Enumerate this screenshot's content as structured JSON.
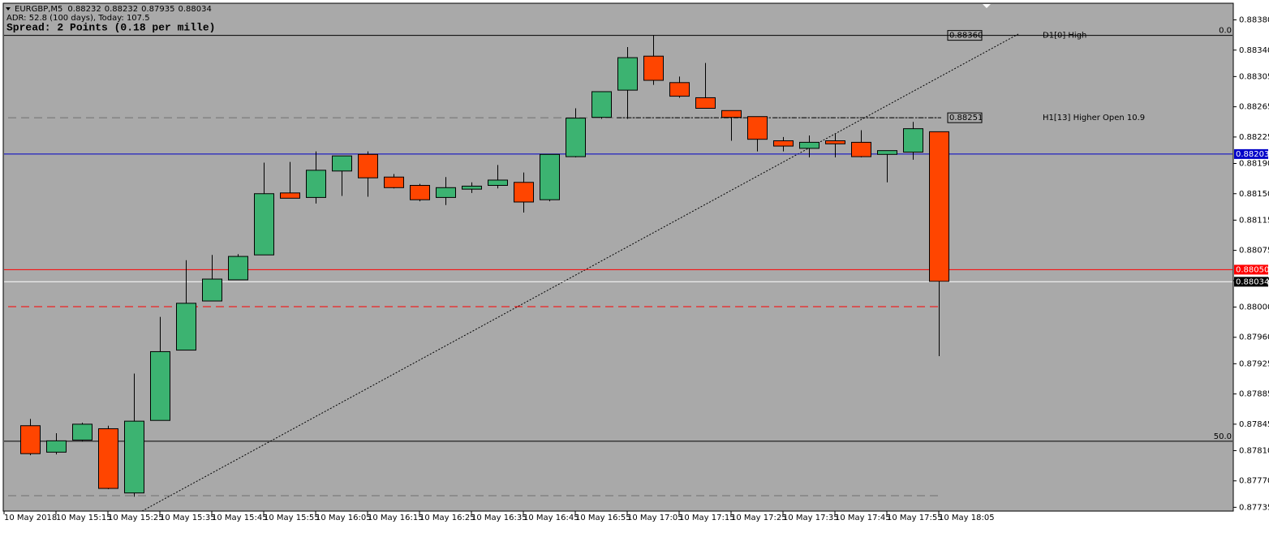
{
  "chart_data": {
    "type": "candlestick",
    "symbol": "EURGBP,M5",
    "adr_text": "ADR: 52.8 (100 days), Today: 107.5",
    "spread_text": "Spread: 2 Points (0.18 per mille)",
    "categories": [
      "10 May 2018",
      null,
      "10 May 15:15",
      null,
      "10 May 15:25",
      null,
      "10 May 15:35",
      null,
      "10 May 15:45",
      null,
      "10 May 15:55",
      null,
      "10 May 16:05",
      null,
      "10 May 16:15",
      null,
      "10 May 16:25",
      null,
      "10 May 16:35",
      null,
      "10 May 16:45",
      null,
      "10 May 16:55",
      null,
      "10 May 17:05",
      null,
      "10 May 17:15",
      null,
      "10 May 17:25",
      null,
      "10 May 17:35",
      null,
      "10 May 17:45",
      null,
      "10 May 17:55",
      null,
      "10 May 18:05"
    ],
    "open": [
      null,
      0.87843,
      0.87808,
      0.87824,
      0.87839,
      0.87754,
      0.8785,
      0.87943,
      0.88008,
      0.88036,
      0.88069,
      0.88151,
      0.88145,
      0.8818,
      0.88202,
      0.88172,
      0.88161,
      0.88145,
      0.88156,
      0.88161,
      0.88165,
      0.88142,
      0.88199,
      0.88251,
      0.88287,
      0.88332,
      0.88297,
      0.88277,
      0.8826,
      0.88252,
      0.8822,
      0.8821,
      0.8822,
      0.88218,
      0.88202,
      0.88205,
      0.88232
    ],
    "high": [
      null,
      0.87852,
      0.87833,
      0.87847,
      0.87843,
      0.87912,
      0.87987,
      0.88062,
      0.88069,
      0.8807,
      0.88191,
      0.88192,
      0.88206,
      0.882,
      0.88206,
      0.88176,
      0.88163,
      0.88172,
      0.88165,
      0.88188,
      0.88178,
      0.88202,
      0.88263,
      0.88285,
      0.88344,
      0.8836,
      0.88305,
      0.88323,
      0.8826,
      0.88252,
      0.88225,
      0.88227,
      0.88229,
      0.88234,
      0.88207,
      0.88245,
      0.88232
    ],
    "low": [
      null,
      0.87804,
      0.87805,
      0.87822,
      0.87759,
      0.87749,
      0.8785,
      0.87943,
      0.88008,
      0.88036,
      0.88069,
      0.88144,
      0.88137,
      0.88147,
      0.88146,
      0.88157,
      0.8814,
      0.88135,
      0.88151,
      0.88157,
      0.88125,
      0.8814,
      0.88198,
      0.88249,
      0.88249,
      0.88294,
      0.88277,
      0.88263,
      0.8822,
      0.88206,
      0.88206,
      0.88198,
      0.88198,
      0.88198,
      0.88165,
      0.88195,
      0.87935
    ],
    "close": [
      null,
      0.87806,
      0.87823,
      0.87845,
      0.8776,
      0.87849,
      0.87941,
      0.88005,
      0.88037,
      0.88067,
      0.8815,
      0.88144,
      0.88181,
      0.882,
      0.88171,
      0.88158,
      0.88142,
      0.88158,
      0.8816,
      0.88168,
      0.88139,
      0.88202,
      0.8825,
      0.88285,
      0.8833,
      0.883,
      0.88279,
      0.88263,
      0.88251,
      0.88222,
      0.88213,
      0.88218,
      0.88216,
      0.88199,
      0.88207,
      0.88236,
      0.88034
    ],
    "up_color": "#3cb371",
    "down_color": "#ff4500",
    "ylim": [
      0.8773,
      0.88402
    ],
    "yticks": [
      {
        "value": 0.8838,
        "label": "0.88380"
      },
      {
        "value": 0.8834,
        "label": "0.88340"
      },
      {
        "value": 0.88305,
        "label": "0.88305"
      },
      {
        "value": 0.88265,
        "label": "0.88265"
      },
      {
        "value": 0.88225,
        "label": "0.88225"
      },
      {
        "value": 0.8819,
        "label": "0.88190"
      },
      {
        "value": 0.8815,
        "label": "0.88150"
      },
      {
        "value": 0.88115,
        "label": "0.88115"
      },
      {
        "value": 0.88075,
        "label": "0.88075"
      },
      {
        "value": 0.88035,
        "label": "0.88035"
      },
      {
        "value": 0.88,
        "label": "0.88000"
      },
      {
        "value": 0.8796,
        "label": "0.87960"
      },
      {
        "value": 0.87925,
        "label": "0.87925"
      },
      {
        "value": 0.87885,
        "label": "0.87885"
      },
      {
        "value": 0.87845,
        "label": "0.87845"
      },
      {
        "value": 0.8781,
        "label": "0.87810"
      },
      {
        "value": 0.8777,
        "label": "0.87770"
      },
      {
        "value": 0.87735,
        "label": "0.87735"
      }
    ],
    "levels": [
      {
        "value": 0.8836,
        "label": "0.88360",
        "label_place": "box",
        "text": "D1[0] High",
        "fib_label": "0.0",
        "style": "solid",
        "color": "#000000"
      },
      {
        "value": 0.88251,
        "label": "0.88251",
        "label_place": "box",
        "text": "H1[13] Higher Open 10.9",
        "style": "dashed",
        "color": "#707070"
      },
      {
        "value": 0.88203,
        "label": "0.88203",
        "label_place": "axis",
        "style": "solid",
        "color": "#0000c8",
        "tag_background": "#0000c8"
      },
      {
        "value": 0.8805,
        "label": "0.88050",
        "label_place": "axis",
        "style": "solid",
        "color": "#ff0000",
        "tag_background": "#ff0000"
      },
      {
        "value": 0.88034,
        "label": "0.88034",
        "label_place": "axis",
        "style": "solid",
        "color": "#ffffff",
        "tag_background": "#000000"
      },
      {
        "value": 0.88001,
        "style": "dashed",
        "color": "#ff0000"
      },
      {
        "value": 0.87823,
        "fib_label": "50.0",
        "style": "solid",
        "color": "#000000"
      },
      {
        "value": 0.87751,
        "style": "dashed",
        "color": "#707070"
      }
    ]
  }
}
